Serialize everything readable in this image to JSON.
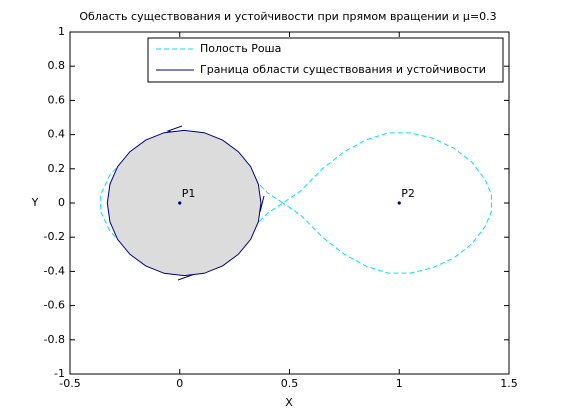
{
  "chart_data": {
    "type": "line",
    "title": "Область существования и устойчивости при прямом вращении и μ=0.3",
    "x_label": "X",
    "y_label": "Y",
    "xlim": [
      -0.5,
      1.5
    ],
    "ylim": [
      -1,
      1
    ],
    "xticks": [
      -0.5,
      0,
      0.5,
      1,
      1.5
    ],
    "yticks": [
      -1,
      -0.8,
      -0.6,
      -0.4,
      -0.2,
      0,
      0.2,
      0.4,
      0.6,
      0.8,
      1
    ],
    "grid": false,
    "legend": "upper-right",
    "series": [
      {
        "name": "Полость Роша",
        "color": "#00e5ee",
        "dashed": true,
        "x": [
          0.47,
          0.4,
          0.33,
          0.25,
          0.15,
          0.05,
          -0.05,
          -0.15,
          -0.25,
          -0.32,
          -0.36,
          -0.36,
          -0.32,
          -0.25,
          -0.15,
          -0.05,
          0.05,
          0.15,
          0.25,
          0.33,
          0.4,
          0.47,
          0.55,
          0.65,
          0.75,
          0.85,
          0.95,
          1.05,
          1.15,
          1.25,
          1.33,
          1.39,
          1.42,
          1.42,
          1.39,
          1.33,
          1.25,
          1.15,
          1.05,
          0.95,
          0.85,
          0.75,
          0.65,
          0.55,
          0.47
        ],
        "y": [
          0,
          0.06,
          0.15,
          0.24,
          0.3,
          0.33,
          0.34,
          0.32,
          0.26,
          0.16,
          0.05,
          -0.05,
          -0.16,
          -0.26,
          -0.32,
          -0.34,
          -0.33,
          -0.3,
          -0.24,
          -0.15,
          -0.06,
          0,
          0.07,
          0.2,
          0.3,
          0.37,
          0.41,
          0.41,
          0.38,
          0.32,
          0.24,
          0.14,
          0.05,
          -0.05,
          -0.14,
          -0.24,
          -0.32,
          -0.38,
          -0.41,
          -0.41,
          -0.37,
          -0.3,
          -0.2,
          -0.07,
          0
        ]
      },
      {
        "name": "Граница области существования и устойчивости",
        "color": "#00007f",
        "fill": "#dcdcdc",
        "dashed": false,
        "x": [
          0.37,
          0.358,
          0.323,
          0.267,
          0.195,
          0.111,
          0.02,
          -0.071,
          -0.155,
          -0.227,
          -0.283,
          -0.318,
          -0.33,
          -0.318,
          -0.283,
          -0.227,
          -0.155,
          -0.071,
          0.02,
          0.111,
          0.195,
          0.267,
          0.323,
          0.358,
          0.37
        ],
        "y": [
          0,
          0.11,
          0.213,
          0.3,
          0.368,
          0.411,
          0.425,
          0.411,
          0.368,
          0.3,
          0.213,
          0.11,
          0,
          -0.11,
          -0.213,
          -0.3,
          -0.368,
          -0.411,
          -0.425,
          -0.411,
          -0.368,
          -0.3,
          -0.213,
          -0.11,
          0
        ]
      }
    ],
    "points": [
      {
        "label": "P1",
        "x": 0,
        "y": 0,
        "color": "#00007f"
      },
      {
        "label": "P2",
        "x": 1,
        "y": 0,
        "color": "#00007f"
      }
    ]
  }
}
